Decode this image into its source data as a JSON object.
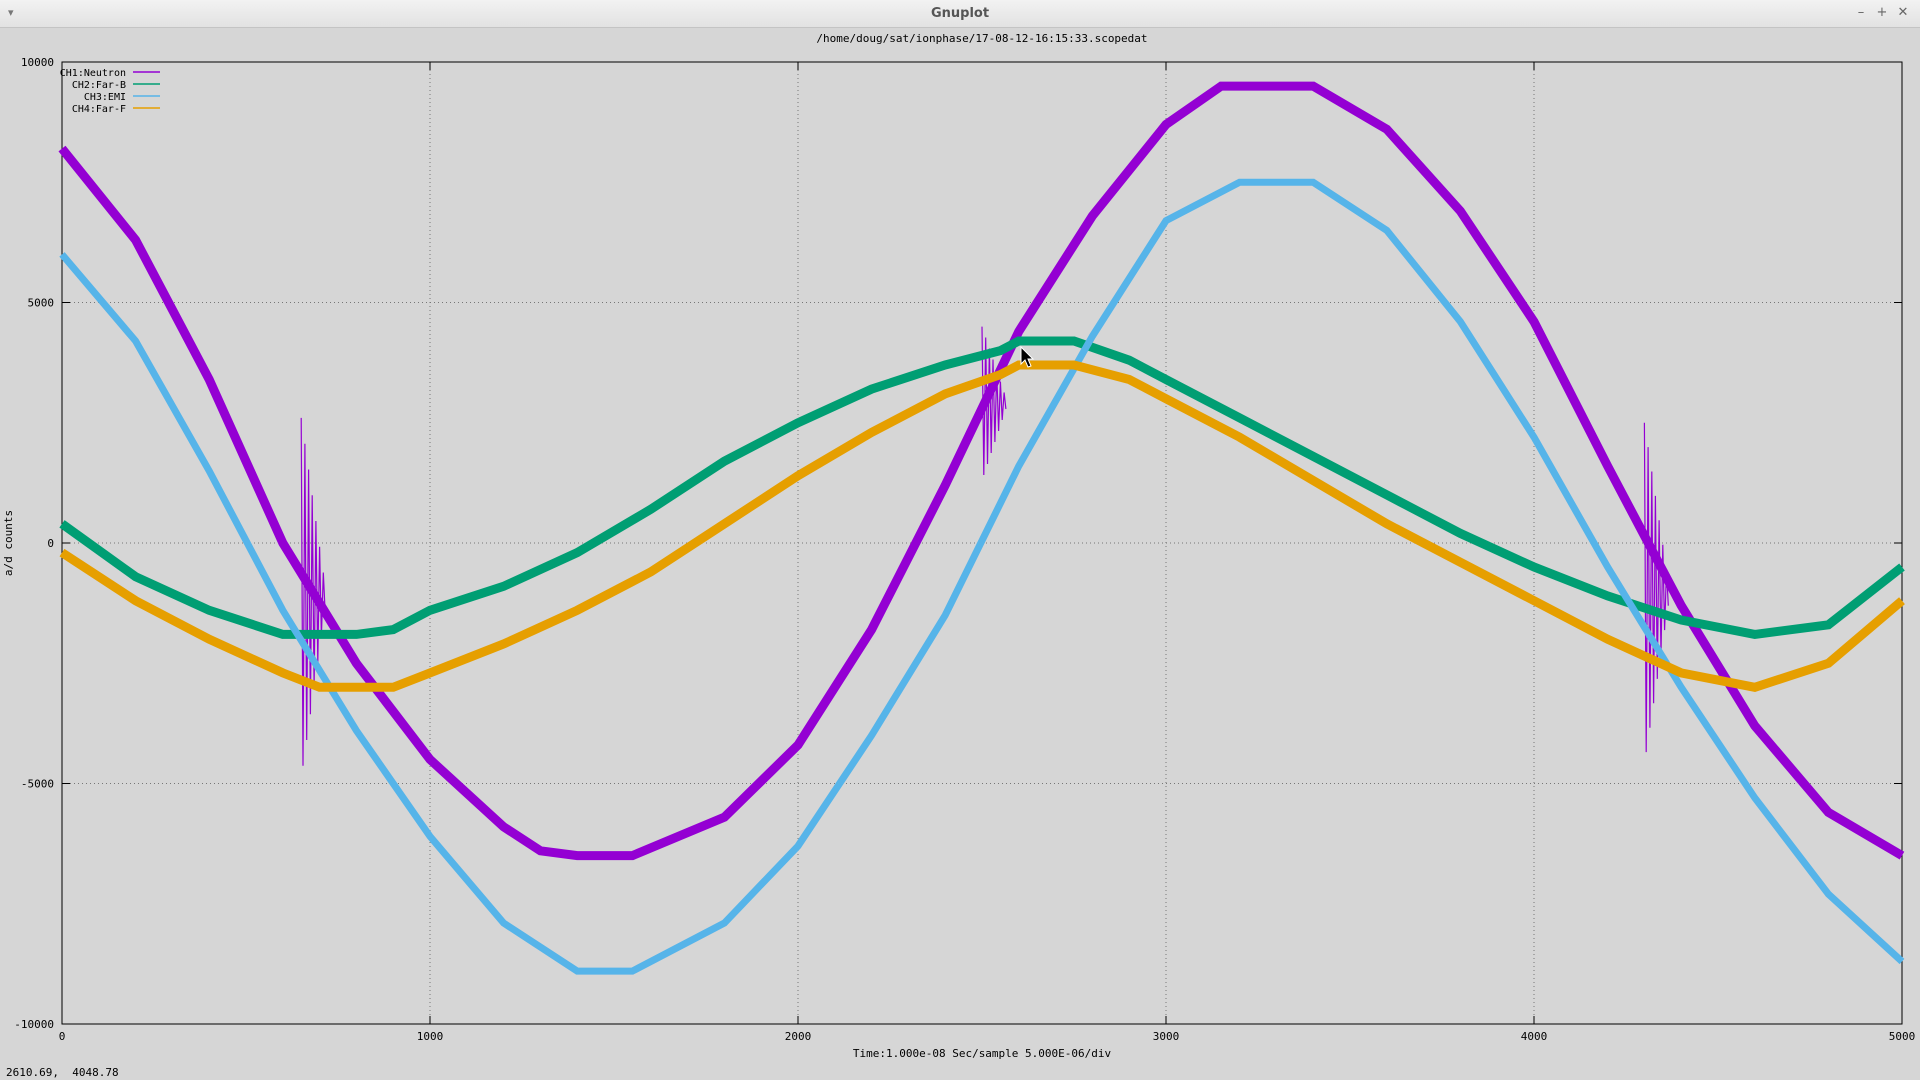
{
  "window": {
    "title": "Gnuplot",
    "menu_icon": "down-arrow-icon",
    "buttons": [
      {
        "name": "minimize-icon",
        "glyph": "–"
      },
      {
        "name": "maximize-icon",
        "glyph": "+"
      },
      {
        "name": "close-icon",
        "glyph": "✕"
      }
    ]
  },
  "status": {
    "coordinates": "2610.69,  4048.78"
  },
  "chart_data": {
    "type": "line",
    "title": "/home/doug/sat/ionphase/17-08-12-16:15:33.scopedat",
    "xlabel": "Time:1.000e-08 Sec/sample 5.000E-06/div",
    "ylabel": "a/d counts",
    "xlim": [
      0,
      5000
    ],
    "ylim": [
      -10000,
      10000
    ],
    "xticks": [
      0,
      1000,
      2000,
      3000,
      4000,
      5000
    ],
    "yticks": [
      -10000,
      -5000,
      0,
      5000,
      10000
    ],
    "grid": true,
    "legend_position": "top-left",
    "series": [
      {
        "name": "CH1:Neutron",
        "color": "#9400d3",
        "points": [
          [
            0,
            8200
          ],
          [
            200,
            6300
          ],
          [
            400,
            3400
          ],
          [
            600,
            0
          ],
          [
            800,
            -2500
          ],
          [
            1000,
            -4500
          ],
          [
            1200,
            -5900
          ],
          [
            1300,
            -6400
          ],
          [
            1400,
            -6500
          ],
          [
            1550,
            -6500
          ],
          [
            1800,
            -5700
          ],
          [
            2000,
            -4200
          ],
          [
            2200,
            -1800
          ],
          [
            2400,
            1200
          ],
          [
            2600,
            4400
          ],
          [
            2800,
            6800
          ],
          [
            3000,
            8700
          ],
          [
            3150,
            9500
          ],
          [
            3400,
            9500
          ],
          [
            3600,
            8600
          ],
          [
            3800,
            6900
          ],
          [
            4000,
            4600
          ],
          [
            4200,
            1600
          ],
          [
            4400,
            -1300
          ],
          [
            4600,
            -3800
          ],
          [
            4800,
            -5600
          ],
          [
            5000,
            -6500
          ]
        ],
        "bursts": [
          {
            "x": 650,
            "max": 2600,
            "min": -4900
          },
          {
            "x": 2500,
            "max": 4500,
            "min": 1300
          },
          {
            "x": 4300,
            "max": 2500,
            "min": -4600
          }
        ]
      },
      {
        "name": "CH2:Far-B",
        "color": "#009e73",
        "points": [
          [
            0,
            400
          ],
          [
            200,
            -700
          ],
          [
            400,
            -1400
          ],
          [
            600,
            -1900
          ],
          [
            800,
            -1900
          ],
          [
            900,
            -1800
          ],
          [
            1000,
            -1400
          ],
          [
            1200,
            -900
          ],
          [
            1400,
            -200
          ],
          [
            1600,
            700
          ],
          [
            1800,
            1700
          ],
          [
            2000,
            2500
          ],
          [
            2200,
            3200
          ],
          [
            2400,
            3700
          ],
          [
            2550,
            4000
          ],
          [
            2600,
            4200
          ],
          [
            2750,
            4200
          ],
          [
            2900,
            3800
          ],
          [
            3000,
            3400
          ],
          [
            3200,
            2600
          ],
          [
            3400,
            1800
          ],
          [
            3600,
            1000
          ],
          [
            3800,
            200
          ],
          [
            4000,
            -500
          ],
          [
            4200,
            -1100
          ],
          [
            4400,
            -1600
          ],
          [
            4600,
            -1900
          ],
          [
            4800,
            -1700
          ],
          [
            5000,
            -500
          ]
        ]
      },
      {
        "name": "CH3:EMI",
        "color": "#56b4e9",
        "points": [
          [
            0,
            6000
          ],
          [
            200,
            4200
          ],
          [
            400,
            1500
          ],
          [
            600,
            -1400
          ],
          [
            800,
            -3900
          ],
          [
            1000,
            -6100
          ],
          [
            1200,
            -7900
          ],
          [
            1400,
            -8900
          ],
          [
            1550,
            -8900
          ],
          [
            1800,
            -7900
          ],
          [
            2000,
            -6300
          ],
          [
            2200,
            -4000
          ],
          [
            2400,
            -1500
          ],
          [
            2600,
            1600
          ],
          [
            2800,
            4300
          ],
          [
            3000,
            6700
          ],
          [
            3200,
            7500
          ],
          [
            3400,
            7500
          ],
          [
            3600,
            6500
          ],
          [
            3800,
            4600
          ],
          [
            4000,
            2200
          ],
          [
            4200,
            -500
          ],
          [
            4400,
            -3000
          ],
          [
            4600,
            -5300
          ],
          [
            4800,
            -7300
          ],
          [
            5000,
            -8700
          ]
        ]
      },
      {
        "name": "CH4:Far-F",
        "color": "#e69f00",
        "points": [
          [
            0,
            -200
          ],
          [
            200,
            -1200
          ],
          [
            400,
            -2000
          ],
          [
            600,
            -2700
          ],
          [
            700,
            -3000
          ],
          [
            900,
            -3000
          ],
          [
            1000,
            -2700
          ],
          [
            1200,
            -2100
          ],
          [
            1400,
            -1400
          ],
          [
            1600,
            -600
          ],
          [
            1800,
            400
          ],
          [
            2000,
            1400
          ],
          [
            2200,
            2300
          ],
          [
            2400,
            3100
          ],
          [
            2550,
            3500
          ],
          [
            2600,
            3700
          ],
          [
            2750,
            3700
          ],
          [
            2900,
            3400
          ],
          [
            3000,
            3000
          ],
          [
            3200,
            2200
          ],
          [
            3400,
            1300
          ],
          [
            3600,
            400
          ],
          [
            3800,
            -400
          ],
          [
            4000,
            -1200
          ],
          [
            4200,
            -2000
          ],
          [
            4400,
            -2700
          ],
          [
            4600,
            -3000
          ],
          [
            4800,
            -2500
          ],
          [
            5000,
            -1200
          ]
        ]
      }
    ]
  }
}
